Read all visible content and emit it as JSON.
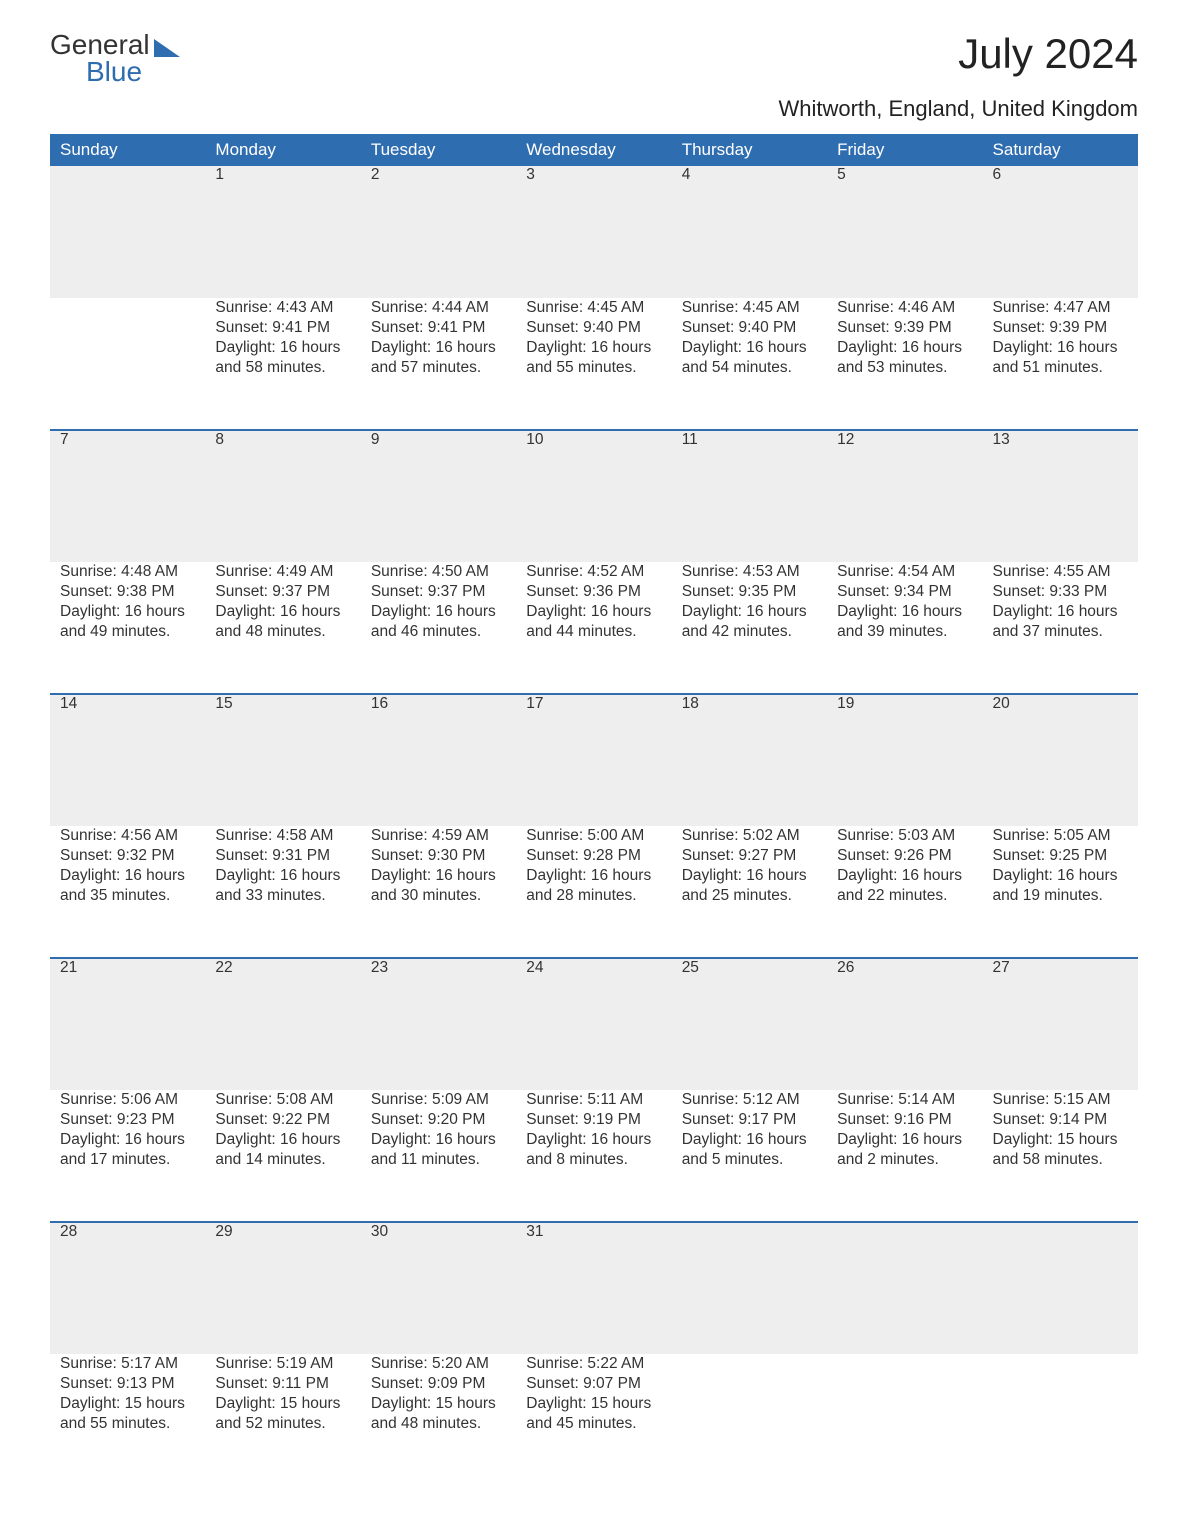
{
  "logo": {
    "line1": "General",
    "line2": "Blue"
  },
  "title": "July 2024",
  "subtitle": "Whitworth, England, United Kingdom",
  "colors": {
    "header_bg": "#2f6db1",
    "header_text": "#ffffff",
    "daynum_bg": "#eeeeee",
    "row_border": "#2f6db1",
    "body_text": "#333333",
    "background": "#ffffff"
  },
  "calendar": {
    "columns": [
      "Sunday",
      "Monday",
      "Tuesday",
      "Wednesday",
      "Thursday",
      "Friday",
      "Saturday"
    ],
    "weeks": [
      [
        null,
        {
          "day": "1",
          "sunrise": "4:43 AM",
          "sunset": "9:41 PM",
          "daylight": "16 hours and 58 minutes."
        },
        {
          "day": "2",
          "sunrise": "4:44 AM",
          "sunset": "9:41 PM",
          "daylight": "16 hours and 57 minutes."
        },
        {
          "day": "3",
          "sunrise": "4:45 AM",
          "sunset": "9:40 PM",
          "daylight": "16 hours and 55 minutes."
        },
        {
          "day": "4",
          "sunrise": "4:45 AM",
          "sunset": "9:40 PM",
          "daylight": "16 hours and 54 minutes."
        },
        {
          "day": "5",
          "sunrise": "4:46 AM",
          "sunset": "9:39 PM",
          "daylight": "16 hours and 53 minutes."
        },
        {
          "day": "6",
          "sunrise": "4:47 AM",
          "sunset": "9:39 PM",
          "daylight": "16 hours and 51 minutes."
        }
      ],
      [
        {
          "day": "7",
          "sunrise": "4:48 AM",
          "sunset": "9:38 PM",
          "daylight": "16 hours and 49 minutes."
        },
        {
          "day": "8",
          "sunrise": "4:49 AM",
          "sunset": "9:37 PM",
          "daylight": "16 hours and 48 minutes."
        },
        {
          "day": "9",
          "sunrise": "4:50 AM",
          "sunset": "9:37 PM",
          "daylight": "16 hours and 46 minutes."
        },
        {
          "day": "10",
          "sunrise": "4:52 AM",
          "sunset": "9:36 PM",
          "daylight": "16 hours and 44 minutes."
        },
        {
          "day": "11",
          "sunrise": "4:53 AM",
          "sunset": "9:35 PM",
          "daylight": "16 hours and 42 minutes."
        },
        {
          "day": "12",
          "sunrise": "4:54 AM",
          "sunset": "9:34 PM",
          "daylight": "16 hours and 39 minutes."
        },
        {
          "day": "13",
          "sunrise": "4:55 AM",
          "sunset": "9:33 PM",
          "daylight": "16 hours and 37 minutes."
        }
      ],
      [
        {
          "day": "14",
          "sunrise": "4:56 AM",
          "sunset": "9:32 PM",
          "daylight": "16 hours and 35 minutes."
        },
        {
          "day": "15",
          "sunrise": "4:58 AM",
          "sunset": "9:31 PM",
          "daylight": "16 hours and 33 minutes."
        },
        {
          "day": "16",
          "sunrise": "4:59 AM",
          "sunset": "9:30 PM",
          "daylight": "16 hours and 30 minutes."
        },
        {
          "day": "17",
          "sunrise": "5:00 AM",
          "sunset": "9:28 PM",
          "daylight": "16 hours and 28 minutes."
        },
        {
          "day": "18",
          "sunrise": "5:02 AM",
          "sunset": "9:27 PM",
          "daylight": "16 hours and 25 minutes."
        },
        {
          "day": "19",
          "sunrise": "5:03 AM",
          "sunset": "9:26 PM",
          "daylight": "16 hours and 22 minutes."
        },
        {
          "day": "20",
          "sunrise": "5:05 AM",
          "sunset": "9:25 PM",
          "daylight": "16 hours and 19 minutes."
        }
      ],
      [
        {
          "day": "21",
          "sunrise": "5:06 AM",
          "sunset": "9:23 PM",
          "daylight": "16 hours and 17 minutes."
        },
        {
          "day": "22",
          "sunrise": "5:08 AM",
          "sunset": "9:22 PM",
          "daylight": "16 hours and 14 minutes."
        },
        {
          "day": "23",
          "sunrise": "5:09 AM",
          "sunset": "9:20 PM",
          "daylight": "16 hours and 11 minutes."
        },
        {
          "day": "24",
          "sunrise": "5:11 AM",
          "sunset": "9:19 PM",
          "daylight": "16 hours and 8 minutes."
        },
        {
          "day": "25",
          "sunrise": "5:12 AM",
          "sunset": "9:17 PM",
          "daylight": "16 hours and 5 minutes."
        },
        {
          "day": "26",
          "sunrise": "5:14 AM",
          "sunset": "9:16 PM",
          "daylight": "16 hours and 2 minutes."
        },
        {
          "day": "27",
          "sunrise": "5:15 AM",
          "sunset": "9:14 PM",
          "daylight": "15 hours and 58 minutes."
        }
      ],
      [
        {
          "day": "28",
          "sunrise": "5:17 AM",
          "sunset": "9:13 PM",
          "daylight": "15 hours and 55 minutes."
        },
        {
          "day": "29",
          "sunrise": "5:19 AM",
          "sunset": "9:11 PM",
          "daylight": "15 hours and 52 minutes."
        },
        {
          "day": "30",
          "sunrise": "5:20 AM",
          "sunset": "9:09 PM",
          "daylight": "15 hours and 48 minutes."
        },
        {
          "day": "31",
          "sunrise": "5:22 AM",
          "sunset": "9:07 PM",
          "daylight": "15 hours and 45 minutes."
        },
        null,
        null,
        null
      ]
    ],
    "labels": {
      "sunrise": "Sunrise:",
      "sunset": "Sunset:",
      "daylight": "Daylight:"
    }
  }
}
